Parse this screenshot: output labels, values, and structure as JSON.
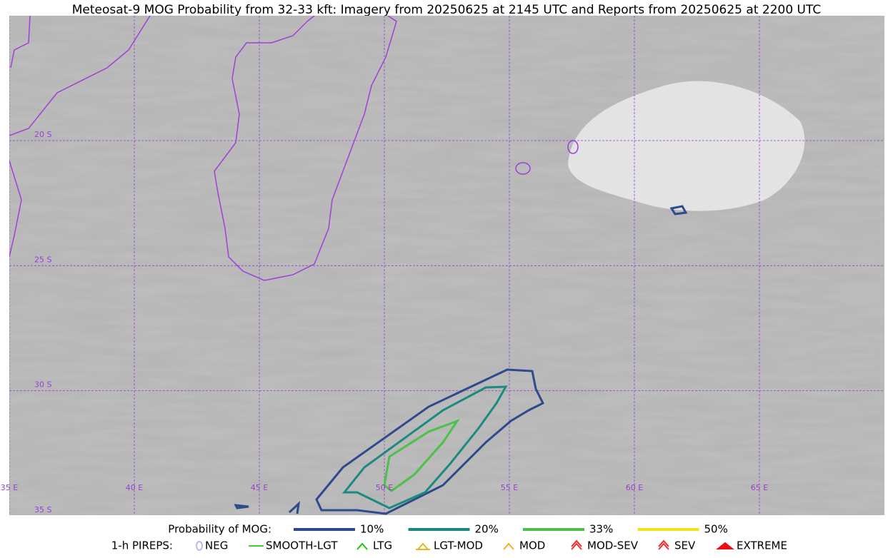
{
  "title": "Meteosat-9 MOG Probability from 32-33 kft: Imagery from 20250625 at 2145 UTC and Reports from 20250625 at 2200 UTC",
  "map": {
    "lat_labels": [
      "20 S",
      "25 S",
      "30 S",
      "35 S"
    ],
    "lon_labels": [
      "35 E",
      "40 E",
      "45 E",
      "50 E",
      "55 E",
      "60 E",
      "65 E"
    ]
  },
  "legend": {
    "probability": {
      "label": "Probability of MOG:",
      "items": [
        {
          "label": "10%",
          "color": "#2e4a8c"
        },
        {
          "label": "20%",
          "color": "#1b8a80"
        },
        {
          "label": "33%",
          "color": "#4cc04a"
        },
        {
          "label": "50%",
          "color": "#f5e11a"
        }
      ]
    },
    "pireps": {
      "label": "1-h PIREPS:",
      "items": [
        {
          "label": "NEG",
          "color": "#b8b8f0"
        },
        {
          "label": "SMOOTH-LGT",
          "color": "#3ad43a"
        },
        {
          "label": "LTG",
          "color": "#14c814"
        },
        {
          "label": "LGT-MOD",
          "color": "#f0b020"
        },
        {
          "label": "MOD",
          "color": "#f0b020"
        },
        {
          "label": "MOD-SEV",
          "color": "#e83030"
        },
        {
          "label": "SEV",
          "color": "#e83030"
        },
        {
          "label": "EXTREME",
          "color": "#e81010"
        }
      ]
    }
  }
}
